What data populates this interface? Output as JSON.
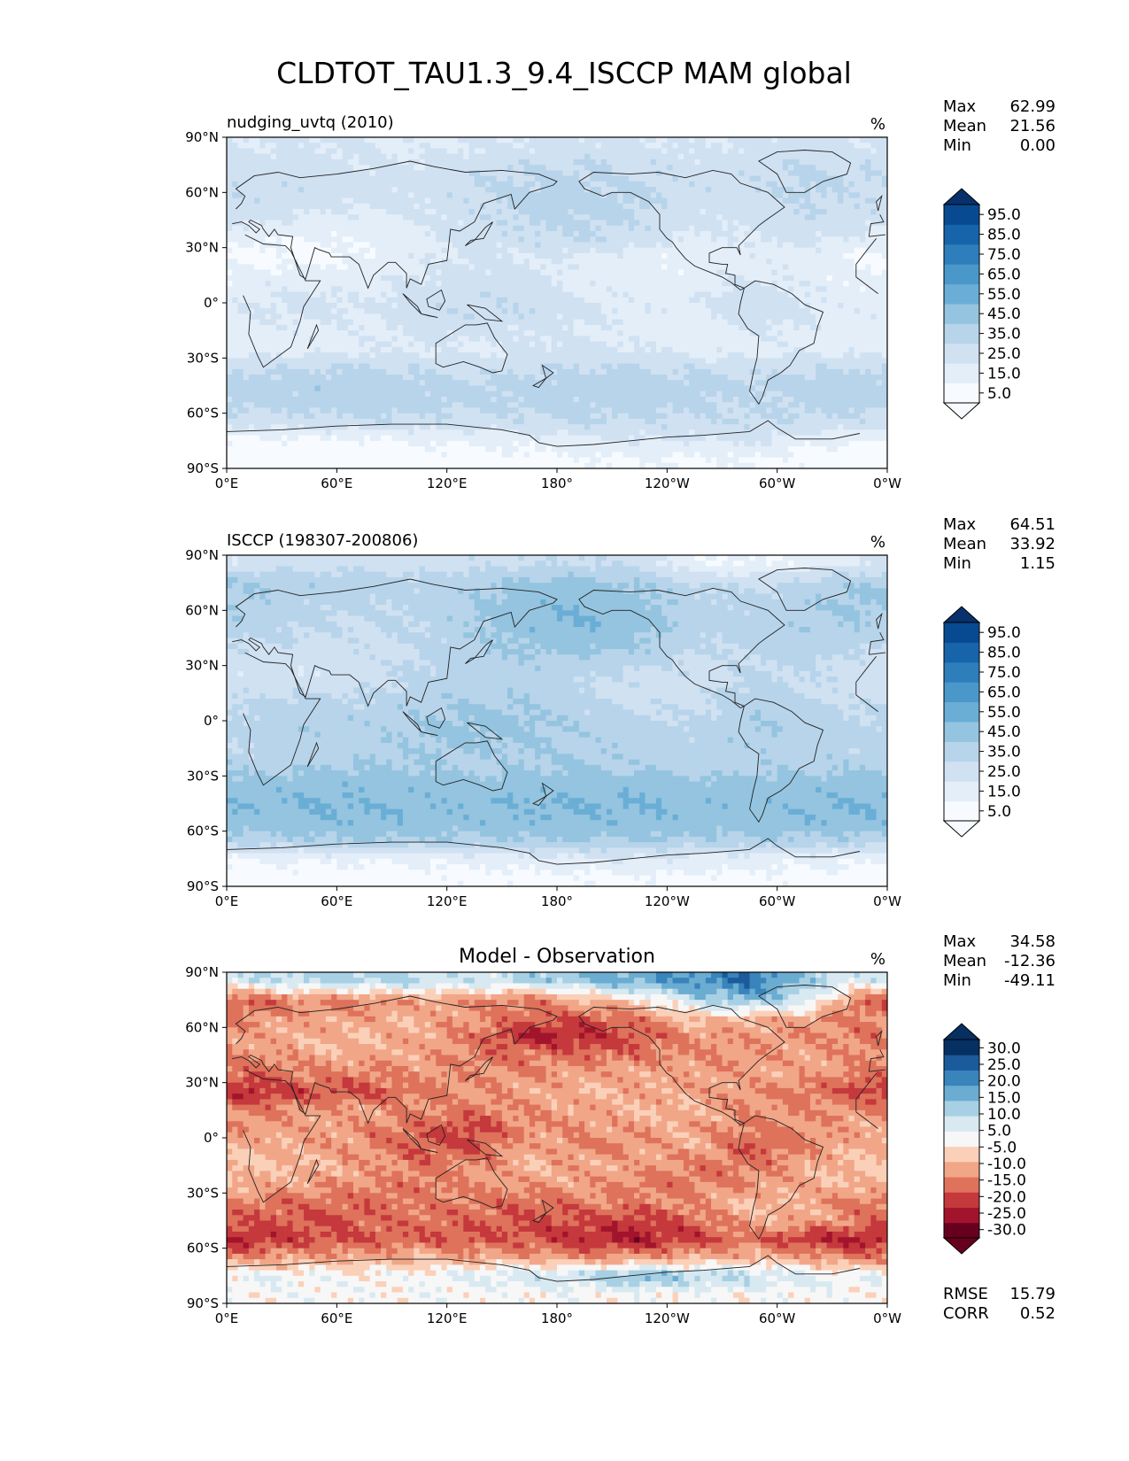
{
  "figure": {
    "title": "CLDTOT_TAU1.3_9.4_ISCCP MAM global",
    "colors": {
      "blues": [
        "#f7fbff",
        "#e3eef9",
        "#d0e1f2",
        "#b7d4ea",
        "#94c4df",
        "#6aaed6",
        "#4a98c9",
        "#2e7ebc",
        "#1764ab",
        "#084a91",
        "#08306b"
      ],
      "diverging": [
        "#67001f",
        "#a2142c",
        "#c5383c",
        "#de725b",
        "#f1a688",
        "#fbd0b9",
        "#f7f7f7",
        "#d8e9f1",
        "#a7d0e4",
        "#6bacd1",
        "#3884bb",
        "#1b5a9b",
        "#053061"
      ],
      "land_outline": "#222222"
    }
  },
  "axes": {
    "lon_ticks": [
      "0°E",
      "60°E",
      "120°E",
      "180°",
      "120°W",
      "60°W",
      "0°W"
    ],
    "lat_ticks": [
      "90°N",
      "60°N",
      "30°N",
      "0°",
      "30°S",
      "60°S",
      "90°S"
    ]
  },
  "chart_data": [
    {
      "type": "heatmap",
      "panel": "test",
      "title": "nudging_uvtq (2010)",
      "units": "%",
      "stats": {
        "max": "62.99",
        "mean": "21.56",
        "min": "0.00"
      },
      "stat_labels": [
        "Max",
        "Mean",
        "Min"
      ],
      "colorbar": {
        "levels": [
          0,
          10,
          20,
          30,
          40,
          50,
          60,
          70,
          80,
          90,
          100
        ],
        "tick_labels": [
          "5.0",
          "15.0",
          "25.0",
          "35.0",
          "45.0",
          "55.0",
          "65.0",
          "75.0",
          "85.0",
          "95.0"
        ],
        "extend": "both"
      },
      "field": {
        "lats": [
          85,
          75,
          65,
          55,
          45,
          35,
          25,
          15,
          5,
          -5,
          -15,
          -25,
          -35,
          -45,
          -55,
          -65,
          -75,
          -85
        ],
        "lons": [
          15,
          45,
          75,
          105,
          135,
          165,
          195,
          225,
          255,
          285,
          315,
          345
        ],
        "values": [
          [
            20,
            22,
            20,
            18,
            20,
            22,
            24,
            22,
            20,
            22,
            24,
            22
          ],
          [
            24,
            26,
            22,
            22,
            26,
            28,
            30,
            28,
            24,
            26,
            30,
            28
          ],
          [
            28,
            26,
            24,
            24,
            30,
            32,
            32,
            30,
            26,
            28,
            32,
            30
          ],
          [
            26,
            24,
            22,
            22,
            28,
            34,
            34,
            32,
            24,
            26,
            30,
            28
          ],
          [
            22,
            18,
            16,
            20,
            26,
            32,
            32,
            30,
            22,
            24,
            28,
            26
          ],
          [
            12,
            10,
            12,
            18,
            24,
            28,
            30,
            26,
            18,
            20,
            24,
            18
          ],
          [
            8,
            6,
            10,
            18,
            22,
            20,
            18,
            14,
            12,
            16,
            14,
            8
          ],
          [
            12,
            14,
            16,
            20,
            24,
            22,
            16,
            12,
            14,
            20,
            16,
            10
          ],
          [
            18,
            22,
            18,
            24,
            28,
            26,
            20,
            16,
            18,
            26,
            20,
            14
          ],
          [
            20,
            24,
            20,
            26,
            30,
            28,
            22,
            18,
            16,
            28,
            22,
            16
          ],
          [
            16,
            18,
            18,
            22,
            24,
            22,
            20,
            16,
            12,
            20,
            18,
            14
          ],
          [
            14,
            16,
            18,
            20,
            16,
            22,
            22,
            20,
            14,
            16,
            18,
            16
          ],
          [
            28,
            30,
            30,
            28,
            26,
            28,
            30,
            30,
            28,
            26,
            28,
            30
          ],
          [
            34,
            36,
            36,
            34,
            32,
            34,
            36,
            36,
            34,
            32,
            34,
            36
          ],
          [
            32,
            34,
            36,
            34,
            30,
            32,
            34,
            34,
            32,
            30,
            32,
            34
          ],
          [
            24,
            26,
            28,
            26,
            26,
            28,
            30,
            30,
            28,
            30,
            28,
            26
          ],
          [
            6,
            8,
            8,
            10,
            12,
            14,
            16,
            20,
            18,
            22,
            14,
            10
          ],
          [
            2,
            3,
            3,
            4,
            5,
            6,
            8,
            10,
            8,
            10,
            6,
            3
          ]
        ]
      }
    },
    {
      "type": "heatmap",
      "panel": "reference",
      "title": "ISCCP (198307-200806)",
      "units": "%",
      "stats": {
        "max": "64.51",
        "mean": "33.92",
        "min": "1.15"
      },
      "stat_labels": [
        "Max",
        "Mean",
        "Min"
      ],
      "colorbar": {
        "levels": [
          0,
          10,
          20,
          30,
          40,
          50,
          60,
          70,
          80,
          90,
          100
        ],
        "tick_labels": [
          "5.0",
          "15.0",
          "25.0",
          "35.0",
          "45.0",
          "55.0",
          "65.0",
          "75.0",
          "85.0",
          "95.0"
        ],
        "extend": "both"
      },
      "field": {
        "lats": [
          85,
          75,
          65,
          55,
          45,
          35,
          25,
          15,
          5,
          -5,
          -15,
          -25,
          -35,
          -45,
          -55,
          -65,
          -75,
          -85
        ],
        "lons": [
          15,
          45,
          75,
          105,
          135,
          165,
          195,
          225,
          255,
          285,
          315,
          345
        ],
        "values": [
          [
            24,
            26,
            26,
            24,
            26,
            28,
            30,
            26,
            12,
            10,
            14,
            20
          ],
          [
            40,
            38,
            36,
            34,
            38,
            42,
            44,
            40,
            30,
            26,
            32,
            40
          ],
          [
            38,
            34,
            32,
            32,
            38,
            46,
            48,
            44,
            34,
            32,
            38,
            42
          ],
          [
            36,
            32,
            30,
            32,
            40,
            48,
            50,
            46,
            36,
            34,
            38,
            40
          ],
          [
            32,
            30,
            28,
            30,
            38,
            44,
            46,
            42,
            32,
            34,
            36,
            34
          ],
          [
            26,
            24,
            26,
            30,
            36,
            40,
            40,
            36,
            28,
            30,
            34,
            28
          ],
          [
            24,
            22,
            26,
            32,
            34,
            34,
            32,
            28,
            26,
            30,
            30,
            24
          ],
          [
            28,
            30,
            30,
            34,
            38,
            36,
            30,
            26,
            26,
            34,
            30,
            26
          ],
          [
            32,
            36,
            34,
            38,
            42,
            40,
            34,
            30,
            28,
            38,
            34,
            30
          ],
          [
            34,
            38,
            36,
            40,
            44,
            42,
            38,
            34,
            32,
            40,
            36,
            32
          ],
          [
            32,
            34,
            36,
            40,
            40,
            40,
            38,
            36,
            34,
            38,
            36,
            32
          ],
          [
            36,
            38,
            40,
            40,
            36,
            40,
            40,
            38,
            36,
            36,
            38,
            38
          ],
          [
            44,
            46,
            46,
            46,
            44,
            46,
            46,
            46,
            44,
            44,
            46,
            46
          ],
          [
            48,
            50,
            50,
            48,
            48,
            50,
            50,
            50,
            48,
            46,
            48,
            50
          ],
          [
            46,
            48,
            48,
            48,
            46,
            48,
            48,
            48,
            46,
            46,
            48,
            48
          ],
          [
            36,
            38,
            40,
            38,
            38,
            40,
            40,
            40,
            38,
            38,
            38,
            36
          ],
          [
            10,
            12,
            12,
            12,
            14,
            16,
            18,
            20,
            18,
            16,
            14,
            12
          ],
          [
            4,
            5,
            5,
            6,
            6,
            7,
            8,
            8,
            7,
            7,
            6,
            5
          ]
        ]
      }
    },
    {
      "type": "heatmap",
      "panel": "difference",
      "title": "Model - Observation",
      "units": "%",
      "stats": {
        "max": "34.58",
        "mean": "-12.36",
        "min": "-49.11",
        "rmse": "15.79",
        "corr": "0.52"
      },
      "stat_labels": [
        "Max",
        "Mean",
        "Min"
      ],
      "metric_labels": [
        "RMSE",
        "CORR"
      ],
      "colorbar": {
        "levels": [
          -35,
          -27.5,
          -22.5,
          -17.5,
          -12.5,
          -7.5,
          -2.5,
          2.5,
          7.5,
          12.5,
          17.5,
          22.5,
          27.5,
          35
        ],
        "tick_labels": [
          "-30.0",
          "-25.0",
          "-20.0",
          "-15.0",
          "-10.0",
          "-5.0",
          "5.0",
          "10.0",
          "15.0",
          "20.0",
          "25.0",
          "30.0"
        ],
        "extend": "both"
      },
      "field": {
        "lats": [
          85,
          75,
          65,
          55,
          45,
          35,
          25,
          15,
          5,
          -5,
          -15,
          -25,
          -35,
          -45,
          -55,
          -65,
          -75,
          -85
        ],
        "lons": [
          15,
          45,
          75,
          105,
          135,
          165,
          195,
          225,
          255,
          285,
          315,
          345
        ],
        "values": [
          [
            6,
            8,
            10,
            8,
            6,
            8,
            12,
            16,
            18,
            22,
            10,
            4
          ],
          [
            -18,
            -12,
            -14,
            -10,
            -12,
            -14,
            -8,
            -4,
            8,
            14,
            6,
            -16
          ],
          [
            -12,
            -10,
            -10,
            -8,
            -12,
            -16,
            -18,
            -14,
            -6,
            -8,
            -10,
            -14
          ],
          [
            -10,
            -8,
            -8,
            -10,
            -14,
            -24,
            -22,
            -18,
            -12,
            -10,
            -12,
            -14
          ],
          [
            -12,
            -10,
            -8,
            -10,
            -14,
            -14,
            -16,
            -14,
            -12,
            -12,
            -10,
            -12
          ],
          [
            -16,
            -14,
            -14,
            -12,
            -12,
            -12,
            -10,
            -10,
            -10,
            -10,
            -10,
            -14
          ],
          [
            -22,
            -18,
            -18,
            -14,
            -12,
            -10,
            -8,
            -10,
            -10,
            -12,
            -14,
            -20
          ],
          [
            -14,
            -12,
            -10,
            -12,
            -14,
            -12,
            -10,
            -8,
            -8,
            -12,
            -12,
            -12
          ],
          [
            -12,
            -10,
            -12,
            -16,
            -20,
            -12,
            -12,
            -10,
            -10,
            -14,
            -12,
            -10
          ],
          [
            -8,
            -10,
            -12,
            -18,
            -18,
            -10,
            -14,
            -12,
            -8,
            -18,
            -14,
            -8
          ],
          [
            -6,
            -8,
            -10,
            -14,
            -12,
            -8,
            -10,
            -10,
            -14,
            -14,
            -10,
            -6
          ],
          [
            -8,
            -10,
            -12,
            -14,
            -12,
            -10,
            -10,
            -14,
            -14,
            -12,
            -8,
            -8
          ],
          [
            -14,
            -16,
            -16,
            -14,
            -14,
            -16,
            -14,
            -14,
            -12,
            -6,
            -10,
            -14
          ],
          [
            -18,
            -18,
            -16,
            -14,
            -16,
            -18,
            -18,
            -20,
            -16,
            -10,
            -8,
            -14
          ],
          [
            -22,
            -18,
            -18,
            -16,
            -18,
            -18,
            -22,
            -24,
            -20,
            -14,
            -22,
            -24
          ],
          [
            -12,
            -10,
            -10,
            -8,
            -10,
            -10,
            -12,
            -12,
            -10,
            -8,
            -10,
            -14
          ],
          [
            2,
            2,
            0,
            0,
            4,
            6,
            8,
            14,
            10,
            8,
            4,
            2
          ],
          [
            0,
            0,
            0,
            0,
            0,
            0,
            0,
            0,
            0,
            0,
            0,
            0
          ]
        ]
      }
    }
  ]
}
